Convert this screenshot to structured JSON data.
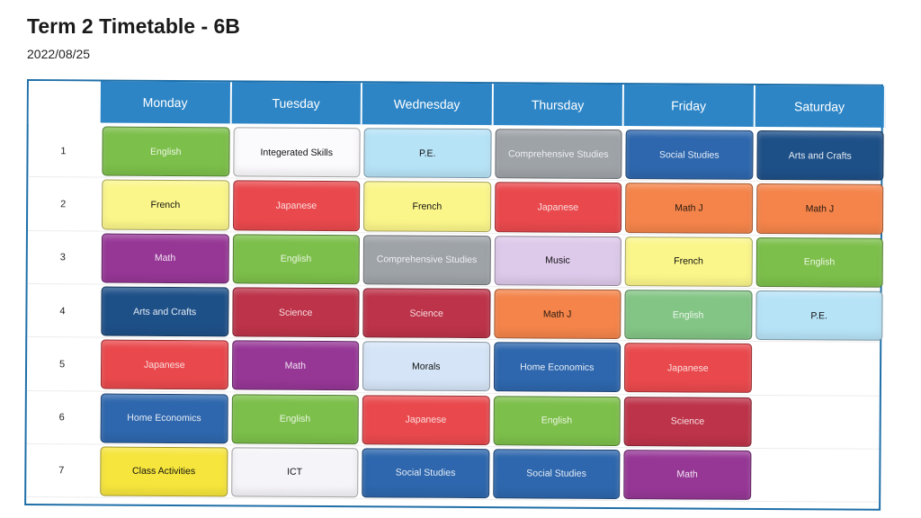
{
  "title": "Term 2 Timetable - 6B",
  "date": "2022/08/25",
  "days": [
    "Monday",
    "Tuesday",
    "Wednesday",
    "Thursday",
    "Friday",
    "Saturday"
  ],
  "periods": [
    "1",
    "2",
    "3",
    "4",
    "5",
    "6",
    "7"
  ],
  "colors": {
    "header": "#2d85c6",
    "frame": "#1f6fa8"
  },
  "subject_styles": {
    "English": {
      "bg": "#7cbf4a",
      "fg": "#eef6e6"
    },
    "Integerated Skills": {
      "bg": "#fbfafd",
      "fg": "#111111"
    },
    "P.E.": {
      "bg": "#b7e3f7",
      "fg": "#111111"
    },
    "Comprehensive Studies": {
      "bg": "#9ea3a8",
      "fg": "#eef0f2"
    },
    "Social Studies": {
      "bg": "#2e67ad",
      "fg": "#e8eef8"
    },
    "Arts and Crafts": {
      "bg": "#1e5088",
      "fg": "#e6edf5"
    },
    "French": {
      "bg": "#fbf68a",
      "fg": "#111111"
    },
    "Japanese": {
      "bg": "#e9494d",
      "fg": "#fbdede"
    },
    "Math J": {
      "bg": "#f4844a",
      "fg": "#2a1a10"
    },
    "Math": {
      "bg": "#963796",
      "fg": "#f2e4f2"
    },
    "Music": {
      "bg": "#ddc9ea",
      "fg": "#111111"
    },
    "Science": {
      "bg": "#bd3349",
      "fg": "#f7dfe3"
    },
    "Morals": {
      "bg": "#d5e5f7",
      "fg": "#111111"
    },
    "Home Economics": {
      "bg": "#2e67ad",
      "fg": "#e8eef8"
    },
    "ICT": {
      "bg": "#f5f4f8",
      "fg": "#111111"
    },
    "Class Activities": {
      "bg": "#f6e53c",
      "fg": "#111111"
    },
    "English (Friday)": {
      "bg": "#83c585",
      "fg": "#eef7ee"
    }
  },
  "schedule": {
    "Monday": [
      "English",
      "French",
      "Math",
      "Arts and Crafts",
      "Japanese",
      "Home Economics",
      "Class Activities"
    ],
    "Tuesday": [
      "Integerated Skills",
      "Japanese",
      "English",
      "Science",
      "Math",
      "English",
      "ICT"
    ],
    "Wednesday": [
      "P.E.",
      "French",
      "Comprehensive Studies",
      "Science",
      "Morals",
      "Japanese",
      "Social Studies"
    ],
    "Thursday": [
      "Comprehensive Studies",
      "Japanese",
      "Music",
      "Math J",
      "Home Economics",
      "English",
      "Social Studies"
    ],
    "Friday": [
      "Social Studies",
      "Math J",
      "French",
      "English",
      "Japanese",
      "Science",
      "Math"
    ],
    "Saturday": [
      "Arts and Crafts",
      "Math J",
      "English",
      "P.E.",
      "",
      "",
      ""
    ]
  }
}
